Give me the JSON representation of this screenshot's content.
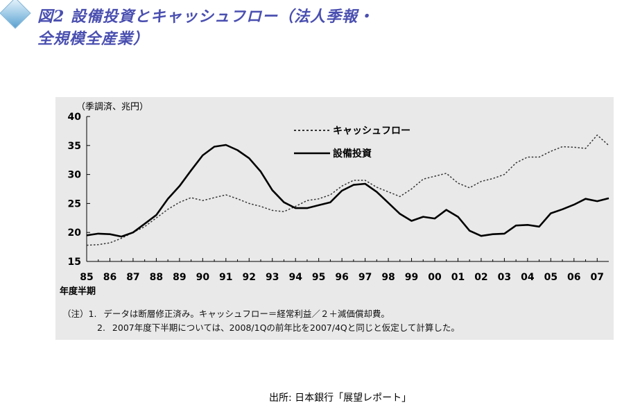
{
  "header": {
    "title": "図2 設備投資とキャッシュフロー（法人季報・全規模全産業）"
  },
  "chart_data": {
    "type": "line",
    "unit_label": "（季調済、兆円）",
    "xlabel": "年度半期",
    "x_ticks": [
      "85",
      "86",
      "87",
      "88",
      "89",
      "90",
      "91",
      "92",
      "93",
      "94",
      "95",
      "96",
      "97",
      "98",
      "99",
      "00",
      "01",
      "02",
      "03",
      "04",
      "05",
      "06",
      "07"
    ],
    "ylim": [
      15,
      40
    ],
    "y_ticks": [
      15,
      20,
      25,
      30,
      35,
      40
    ],
    "legend_position": "top-center",
    "series": [
      {
        "name": "キャッシュフロー",
        "style": "dotted",
        "color": "#333333",
        "x": [
          1985.0,
          1985.5,
          1986.0,
          1986.5,
          1987.0,
          1987.5,
          1988.0,
          1988.5,
          1989.0,
          1989.5,
          1990.0,
          1990.5,
          1991.0,
          1991.5,
          1992.0,
          1992.5,
          1993.0,
          1993.5,
          1994.0,
          1994.5,
          1995.0,
          1995.5,
          1996.0,
          1996.5,
          1997.0,
          1997.5,
          1998.0,
          1998.5,
          1999.0,
          1999.5,
          2000.0,
          2000.5,
          2001.0,
          2001.5,
          2002.0,
          2002.5,
          2003.0,
          2003.5,
          2004.0,
          2004.5,
          2005.0,
          2005.5,
          2006.0,
          2006.5,
          2007.0,
          2007.5
        ],
        "values": [
          17.8,
          17.9,
          18.2,
          19.0,
          20.0,
          21.0,
          22.5,
          24.0,
          25.2,
          26.0,
          25.5,
          26.0,
          26.5,
          25.8,
          25.0,
          24.5,
          23.8,
          23.6,
          24.5,
          25.5,
          25.8,
          26.5,
          28.0,
          29.0,
          29.0,
          27.8,
          27.0,
          26.2,
          27.5,
          29.2,
          29.7,
          30.2,
          28.5,
          27.7,
          28.8,
          29.3,
          30.0,
          32.0,
          33.0,
          33.0,
          34.0,
          34.8,
          34.7,
          34.5,
          36.8,
          35.0
        ]
      },
      {
        "name": "設備投資",
        "style": "solid",
        "color": "#000000",
        "x": [
          1985.0,
          1985.5,
          1986.0,
          1986.5,
          1987.0,
          1987.5,
          1988.0,
          1988.5,
          1989.0,
          1989.5,
          1990.0,
          1990.5,
          1991.0,
          1991.5,
          1992.0,
          1992.5,
          1993.0,
          1993.5,
          1994.0,
          1994.5,
          1995.0,
          1995.5,
          1996.0,
          1996.5,
          1997.0,
          1997.5,
          1998.0,
          1998.5,
          1999.0,
          1999.5,
          2000.0,
          2000.5,
          2001.0,
          2001.5,
          2002.0,
          2002.5,
          2003.0,
          2003.5,
          2004.0,
          2004.5,
          2005.0,
          2005.5,
          2006.0,
          2006.5,
          2007.0,
          2007.5
        ],
        "values": [
          19.5,
          19.8,
          19.7,
          19.3,
          20.0,
          21.5,
          23.0,
          25.8,
          28.0,
          30.7,
          33.3,
          34.8,
          35.1,
          34.2,
          32.8,
          30.5,
          27.3,
          25.2,
          24.2,
          24.2,
          24.7,
          25.2,
          27.2,
          28.2,
          28.4,
          27.0,
          25.1,
          23.2,
          22.0,
          22.7,
          22.4,
          23.9,
          22.7,
          20.3,
          19.4,
          19.7,
          19.8,
          21.2,
          21.3,
          21.0,
          23.3,
          24.0,
          24.8,
          25.8,
          25.4,
          25.9
        ]
      }
    ]
  },
  "notes": {
    "line1_prefix": "（注）1.",
    "line1_text": "データは断層修正済み。キャッシュフロー＝経常利益／２＋減価償却費。",
    "line2_prefix": "2.",
    "line2_text": "2007年度下半期については、2008/1Qの前年比を2007/4Qと同じと仮定して計算した。"
  },
  "source": "出所: 日本銀行「展望レポート」"
}
